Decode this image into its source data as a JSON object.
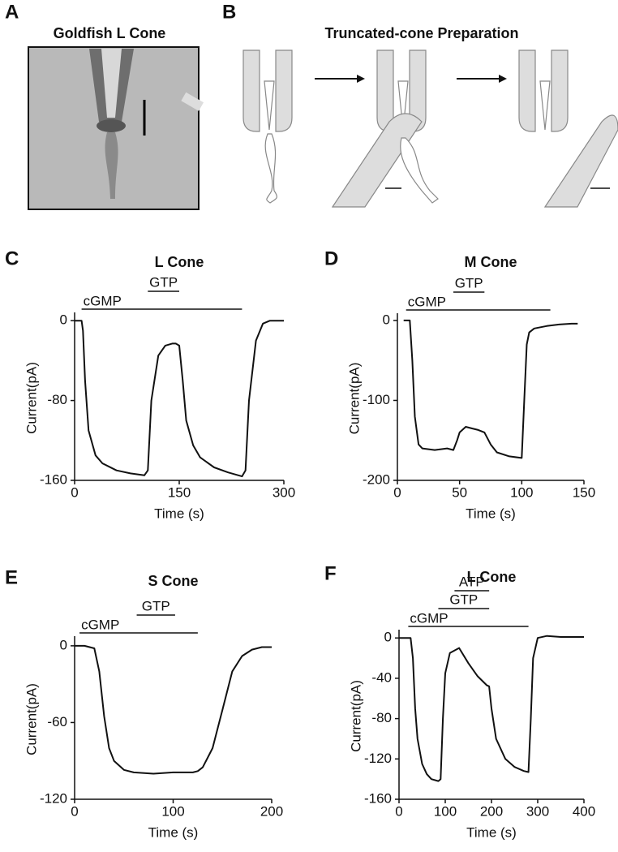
{
  "figure_panels": [
    {
      "label": "A",
      "title": "Goldfish L Cone"
    },
    {
      "label": "B",
      "title": "Truncated-cone Preparation"
    }
  ],
  "chart_data": [
    {
      "type": "line",
      "label": "C",
      "title": "L Cone",
      "x_label": "Time (s)",
      "y_label": "Current(pA)",
      "xlim": [
        0,
        300
      ],
      "ylim": [
        -160,
        5
      ],
      "xticks": [
        0,
        150,
        300
      ],
      "yticks": [
        -160,
        -80,
        0
      ],
      "annotations": [
        {
          "text": "cGMP",
          "xrange": [
            10,
            240
          ]
        },
        {
          "text": "GTP",
          "xrange": [
            105,
            150
          ]
        }
      ],
      "series": [
        {
          "name": "L Cone",
          "color": "#111111",
          "x": [
            0,
            10,
            12,
            15,
            20,
            30,
            40,
            60,
            80,
            100,
            105,
            110,
            120,
            130,
            140,
            145,
            150,
            155,
            160,
            170,
            180,
            200,
            220,
            240,
            245,
            250,
            260,
            270,
            280,
            300
          ],
          "values": [
            0,
            0,
            -10,
            -60,
            -110,
            -135,
            -143,
            -150,
            -153,
            -155,
            -150,
            -80,
            -35,
            -25,
            -23,
            -23,
            -25,
            -60,
            -100,
            -125,
            -137,
            -147,
            -152,
            -156,
            -150,
            -80,
            -20,
            -3,
            0,
            0
          ]
        }
      ]
    },
    {
      "type": "line",
      "label": "D",
      "title": "M Cone",
      "x_label": "Time (s)",
      "y_label": "Current(pA)",
      "xlim": [
        0,
        150
      ],
      "ylim": [
        -200,
        5
      ],
      "xticks": [
        0,
        50,
        100,
        150
      ],
      "yticks": [
        -200,
        -100,
        0
      ],
      "annotations": [
        {
          "text": "cGMP",
          "xrange": [
            7,
            123
          ]
        },
        {
          "text": "GTP",
          "xrange": [
            45,
            70
          ]
        }
      ],
      "series": [
        {
          "name": "M Cone",
          "color": "#111111",
          "x": [
            5,
            10,
            12,
            14,
            17,
            20,
            30,
            40,
            45,
            48,
            50,
            55,
            60,
            65,
            70,
            75,
            80,
            90,
            100,
            102,
            104,
            106,
            110,
            120,
            130,
            140,
            145
          ],
          "values": [
            0,
            0,
            -50,
            -120,
            -155,
            -160,
            -162,
            -160,
            -162,
            -150,
            -140,
            -133,
            -135,
            -137,
            -140,
            -155,
            -165,
            -170,
            -172,
            -100,
            -30,
            -15,
            -10,
            -7,
            -5,
            -4,
            -4
          ]
        }
      ]
    },
    {
      "type": "line",
      "label": "E",
      "title": "S Cone",
      "x_label": "Time (s)",
      "y_label": "Current(pA)",
      "xlim": [
        0,
        200
      ],
      "ylim": [
        -120,
        5
      ],
      "xticks": [
        0,
        100,
        200
      ],
      "yticks": [
        -120,
        -60,
        0
      ],
      "annotations": [
        {
          "text": "cGMP",
          "xrange": [
            5,
            125
          ]
        },
        {
          "text": "GTP",
          "xrange": [
            63,
            102
          ]
        }
      ],
      "series": [
        {
          "name": "S Cone",
          "color": "#111111",
          "x": [
            0,
            10,
            20,
            25,
            30,
            35,
            40,
            50,
            60,
            80,
            100,
            120,
            125,
            130,
            140,
            150,
            160,
            170,
            180,
            190,
            200
          ],
          "values": [
            0,
            0,
            -2,
            -20,
            -55,
            -80,
            -90,
            -97,
            -99,
            -100,
            -99,
            -99,
            -98,
            -95,
            -80,
            -50,
            -20,
            -8,
            -3,
            -1,
            -1
          ]
        }
      ]
    },
    {
      "type": "line",
      "label": "F",
      "title": "L Cone",
      "x_label": "Time (s)",
      "y_label": "Current(pA)",
      "xlim": [
        0,
        400
      ],
      "ylim": [
        -160,
        5
      ],
      "xticks": [
        0,
        100,
        200,
        300,
        400
      ],
      "yticks": [
        -160,
        -120,
        -80,
        -40,
        0
      ],
      "annotations": [
        {
          "text": "cGMP",
          "xrange": [
            20,
            280
          ]
        },
        {
          "text": "GTP",
          "xrange": [
            85,
            195
          ]
        },
        {
          "text": "ATP",
          "xrange": [
            120,
            195
          ]
        }
      ],
      "series": [
        {
          "name": "L Cone",
          "color": "#111111",
          "x": [
            0,
            25,
            30,
            35,
            40,
            50,
            60,
            70,
            85,
            90,
            95,
            100,
            110,
            130,
            150,
            170,
            190,
            195,
            200,
            210,
            230,
            250,
            270,
            280,
            285,
            290,
            300,
            320,
            350,
            400
          ],
          "values": [
            0,
            0,
            -20,
            -70,
            -100,
            -125,
            -135,
            -140,
            -142,
            -140,
            -80,
            -35,
            -15,
            -10,
            -25,
            -38,
            -47,
            -48,
            -70,
            -100,
            -120,
            -128,
            -132,
            -133,
            -80,
            -20,
            0,
            2,
            1,
            1
          ]
        }
      ]
    }
  ]
}
